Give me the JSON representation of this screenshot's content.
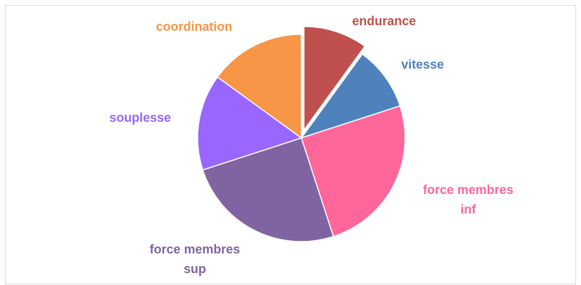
{
  "chart_data": {
    "type": "pie",
    "categories": [
      "endurance",
      "vitesse",
      "force membres inf",
      "force membres sup",
      "souplesse",
      "coordination"
    ],
    "values": [
      10,
      10,
      25,
      25,
      15,
      15
    ],
    "colors": [
      "#c0504d",
      "#4f81bd",
      "#ff6699",
      "#8064a2",
      "#9966ff",
      "#f79646"
    ],
    "explode": [
      0.08,
      0,
      0,
      0,
      0,
      0
    ]
  }
}
